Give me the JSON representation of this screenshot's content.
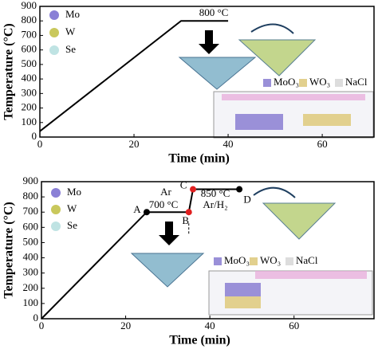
{
  "chart_data": [
    {
      "type": "line",
      "x_label": "Time (min)",
      "y_label": "Temperature (°C)",
      "x": [
        0,
        30,
        40
      ],
      "series": [
        {
          "color": "#000000",
          "values": [
            40,
            800,
            800
          ]
        }
      ],
      "xlim": [
        0,
        71
      ],
      "xticks": [
        0,
        20,
        40,
        60
      ],
      "ylim": [
        0,
        900
      ],
      "yticks": [
        0,
        100,
        200,
        300,
        400,
        500,
        600,
        700,
        800,
        900
      ],
      "annotations": [
        "800 °C"
      ],
      "legend": [
        {
          "label": "Mo",
          "color": "#8a80d6"
        },
        {
          "label": "W",
          "color": "#c9c85c"
        },
        {
          "label": "Se",
          "color": "#bfe3e3"
        }
      ],
      "sources": [
        {
          "label": "MoO₃",
          "color": "#9a90d8"
        },
        {
          "label": "WO₃",
          "color": "#e2d08e"
        },
        {
          "label": "NaCl",
          "color": "#dddddd"
        }
      ]
    },
    {
      "type": "line",
      "x_label": "Time (min)",
      "y_label": "Temperature (°C)",
      "x": [
        0,
        25,
        35,
        36,
        47
      ],
      "series": [
        {
          "color": "#000000",
          "values": [
            0,
            700,
            700,
            850,
            850
          ]
        }
      ],
      "point_labels": [
        null,
        "A",
        "B",
        "C",
        "D"
      ],
      "marker_colors": [
        null,
        "#000000",
        "#e02020",
        "#e02020",
        "#000000"
      ],
      "xlim": [
        0,
        79
      ],
      "xticks": [
        0,
        20,
        40,
        60
      ],
      "ylim": [
        0,
        900
      ],
      "yticks": [
        0,
        100,
        200,
        300,
        400,
        500,
        600,
        700,
        800,
        900
      ],
      "annotations": [
        "Ar",
        "700 °C",
        "850 °C",
        "Ar/H₂"
      ],
      "legend": [
        {
          "label": "Mo",
          "color": "#8a80d6"
        },
        {
          "label": "W",
          "color": "#c9c85c"
        },
        {
          "label": "Se",
          "color": "#bfe3e3"
        }
      ],
      "sources": [
        {
          "label": "MoO₃",
          "color": "#9a90d8"
        },
        {
          "label": "WO₃",
          "color": "#e2d08e"
        },
        {
          "label": "NaCl",
          "color": "#dddddd"
        }
      ]
    }
  ]
}
